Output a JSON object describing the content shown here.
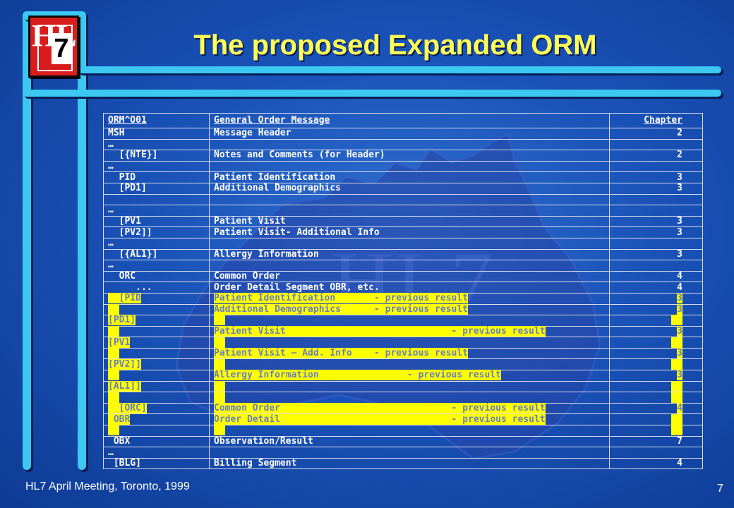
{
  "title": "The proposed Expanded ORM",
  "logo": {
    "text_h": "HL",
    "text_7": "7"
  },
  "watermark": "HL7",
  "footer": "HL7 April Meeting, Toronto, 1999",
  "page_number": "7",
  "colors": {
    "background": "#1a52b8",
    "frame": "#3cc8f0",
    "title": "#ffff55",
    "highlight": "#ffff00"
  },
  "table": {
    "header": {
      "c1": "ORM^O01",
      "c2": "General Order Message",
      "c3": "Chapter"
    },
    "rows": [
      {
        "c1": "MSH",
        "c2": "Message Header",
        "c3": "2"
      },
      {
        "c1": "…",
        "c2": "",
        "c3": ""
      },
      {
        "c1": "  [{NTE}]",
        "c2": "Notes and Comments (for Header)",
        "c3": "2"
      },
      {
        "c1": "…",
        "c2": "",
        "c3": ""
      },
      {
        "c1": "  PID",
        "c2": "Patient Identification",
        "c3": "3"
      },
      {
        "c1": "  [PD1]",
        "c2": "Additional Demographics",
        "c3": "3"
      },
      {
        "c1": "",
        "c2": "",
        "c3": ""
      },
      {
        "c1": "…",
        "c2": "",
        "c3": ""
      },
      {
        "c1": "  [PV1",
        "c2": "Patient Visit",
        "c3": "3"
      },
      {
        "c1": "  [PV2]]",
        "c2": "Patient Visit- Additional Info",
        "c3": "3"
      },
      {
        "c1": "…",
        "c2": "",
        "c3": ""
      },
      {
        "c1": "  [{AL1}]",
        "c2": "Allergy Information",
        "c3": "3"
      },
      {
        "c1": "…",
        "c2": "",
        "c3": ""
      },
      {
        "c1": "  ORC",
        "c2": "Common Order",
        "c3": "4"
      },
      {
        "c1": "     ...",
        "c2": "Order Detail Segment OBR, etc.",
        "c3": "4"
      },
      {
        "c1": "  [PID",
        "c2": "Patient Identification       - previous result",
        "c3": "3",
        "hl": true
      },
      {
        "c1": "",
        "c2": "Additional Demographics      - previous result",
        "c3": "3",
        "hl": true
      },
      {
        "c1": "[PD1]",
        "c2": "",
        "c3": "",
        "hl": true
      },
      {
        "c1": "",
        "c2": "Patient Visit                              - previous result",
        "c3": "3",
        "hl": true
      },
      {
        "c1": "[PV1",
        "c2": "",
        "c3": "",
        "hl": true
      },
      {
        "c1": "",
        "c2": "Patient Visit – Add. Info    - previous result",
        "c3": "3",
        "hl": true
      },
      {
        "c1": "[PV2]]",
        "c2": "",
        "c3": "",
        "hl": true
      },
      {
        "c1": "",
        "c2": "Allergy Information                - previous result",
        "c3": "3",
        "hl": true
      },
      {
        "c1": "[AL1]]",
        "c2": "",
        "c3": "",
        "hl": true
      },
      {
        "c1": "",
        "c2": "",
        "c3": "",
        "hl": true
      },
      {
        "c1": "  [ORC]",
        "c2": "Common Order                               - previous result",
        "c3": "4",
        "hl": true
      },
      {
        "c1": " OBR",
        "c2": "Order Detail                               - previous result",
        "c3": "",
        "hl": true
      },
      {
        "c1": "",
        "c2": "",
        "c3": "",
        "hl": true
      },
      {
        "c1": " OBX",
        "c2": "Observation/Result",
        "c3": "7"
      },
      {
        "c1": "…",
        "c2": "",
        "c3": ""
      },
      {
        "c1": " [BLG]",
        "c2": "Billing Segment",
        "c3": "4"
      }
    ]
  }
}
